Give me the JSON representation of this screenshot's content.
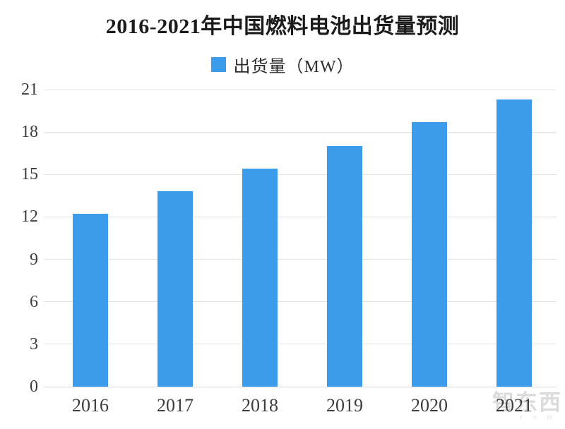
{
  "page": {
    "background": "#ffffff"
  },
  "header": {
    "title": "2016-2021年中国燃料电池出货量预测"
  },
  "legend": {
    "label": "出货量（MW）",
    "swatch_color": "#3d9bec"
  },
  "watermark": {
    "text": "智东西",
    "suffix": "c o m"
  },
  "chart_data": {
    "type": "bar",
    "title": "2016-2021年中国燃料电池出货量预测",
    "categories": [
      "2016",
      "2017",
      "2018",
      "2019",
      "2020",
      "2021"
    ],
    "values": [
      12.2,
      13.8,
      15.4,
      17.0,
      18.7,
      20.3
    ],
    "series_name": "出货量（MW）",
    "xlabel": "",
    "ylabel": "",
    "ylim": [
      0,
      21
    ],
    "yticks": [
      0,
      3,
      6,
      9,
      12,
      15,
      18,
      21
    ],
    "grid": true,
    "legend_position": "top",
    "bar_color": "#3d9bec",
    "gridline_color": "#e3e3e3"
  }
}
